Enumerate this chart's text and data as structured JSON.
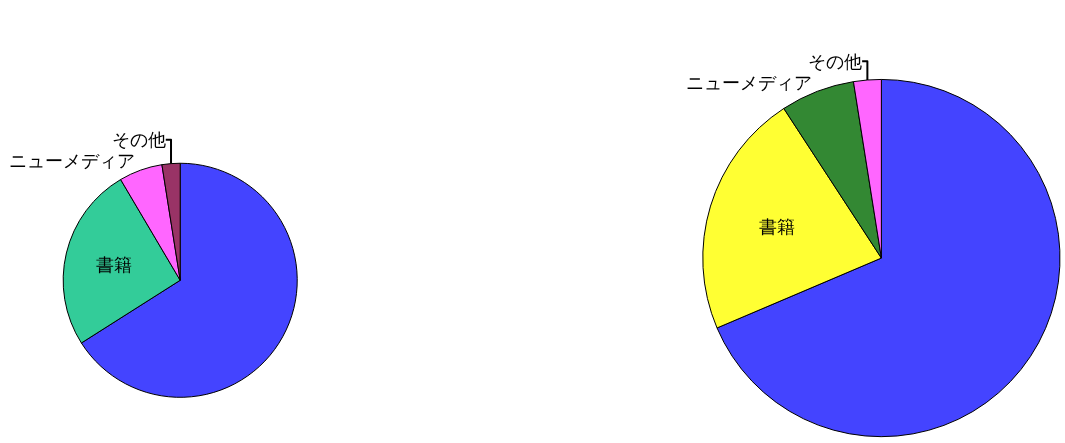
{
  "chart_data": [
    {
      "type": "pie",
      "categories": [
        null,
        "書籍",
        "ニューメディア",
        "その他"
      ],
      "values": [
        66,
        25.5,
        6,
        2.5
      ],
      "colors": [
        "#4444ff",
        "#33cc99",
        "#ff66ff",
        "#993366"
      ],
      "legend": false
    },
    {
      "type": "pie",
      "categories": [
        null,
        "書籍",
        "ニューメディア",
        "その他"
      ],
      "values": [
        68.6,
        22.2,
        6.7,
        2.5
      ],
      "colors": [
        "#4444ff",
        "#ffff33",
        "#338833",
        "#ff66ff"
      ],
      "legend": false
    }
  ]
}
